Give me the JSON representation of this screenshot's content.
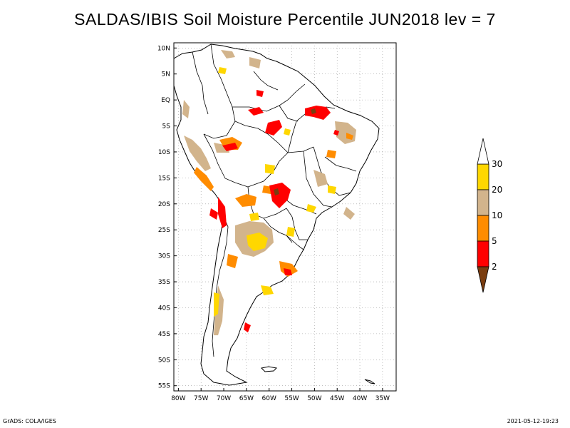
{
  "title": "SALDAS/IBIS Soil Moisture Percentile JUN2018 lev = 7",
  "axes": {
    "lon_ticks": [
      "80W",
      "75W",
      "70W",
      "65W",
      "60W",
      "55W",
      "50W",
      "45W",
      "40W",
      "35W"
    ],
    "lat_ticks": [
      "10N",
      "5N",
      "EQ",
      "5S",
      "10S",
      "15S",
      "20S",
      "25S",
      "30S",
      "35S",
      "40S",
      "45S",
      "50S",
      "55S"
    ],
    "lon_range": [
      -81,
      -32
    ],
    "lat_range": [
      -56,
      11
    ]
  },
  "colorbar": {
    "levels": [
      "2",
      "5",
      "10",
      "20",
      "30"
    ],
    "colors": {
      "below_2": "#7a3d10",
      "2_5": "#ff0000",
      "5_10": "#ff8c00",
      "10_20": "#d2b48c",
      "20_30": "#ffd700",
      "above_30": "#ffffff"
    }
  },
  "footer": {
    "left": "GrADS: COLA/IGES",
    "right": "2021-05-12-19:23"
  }
}
